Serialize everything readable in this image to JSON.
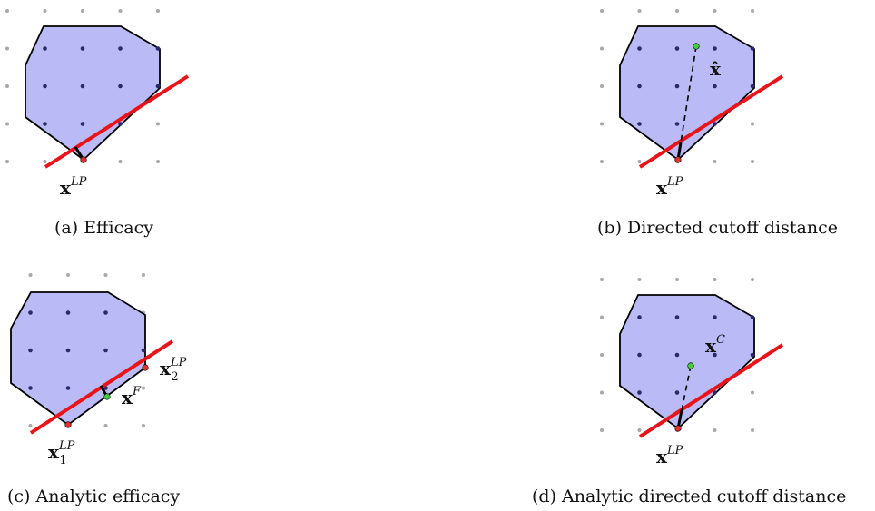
{
  "colors": {
    "polytope_fill": "#babaf7",
    "polytope_stroke": "#000000",
    "cut_line": "#e8141a",
    "grid_dot": "#a8a8a8",
    "inner_dot": "#2a2a6a",
    "lp_point": "#e03030",
    "aux_point": "#44cc44"
  },
  "panels": {
    "a": {
      "caption": "(a) Efficacy",
      "label_x": "x",
      "label_sup": "LP"
    },
    "b": {
      "caption": "(b) Directed cutoff distance",
      "label_x": "x",
      "label_sup": "LP",
      "hat_label": "x̂"
    },
    "c": {
      "caption": "(c) Analytic efficacy",
      "label_x1": "x",
      "label_x1_sup": "LP",
      "label_x1_sub": "1",
      "label_x2": "x",
      "label_x2_sup": "LP",
      "label_x2_sub": "2",
      "label_f": "x",
      "label_f_sup": "F"
    },
    "d": {
      "caption": "(d) Analytic directed cutoff distance",
      "label_x": "x",
      "label_sup": "LP",
      "label_c": "x",
      "label_c_sup": "C"
    }
  }
}
